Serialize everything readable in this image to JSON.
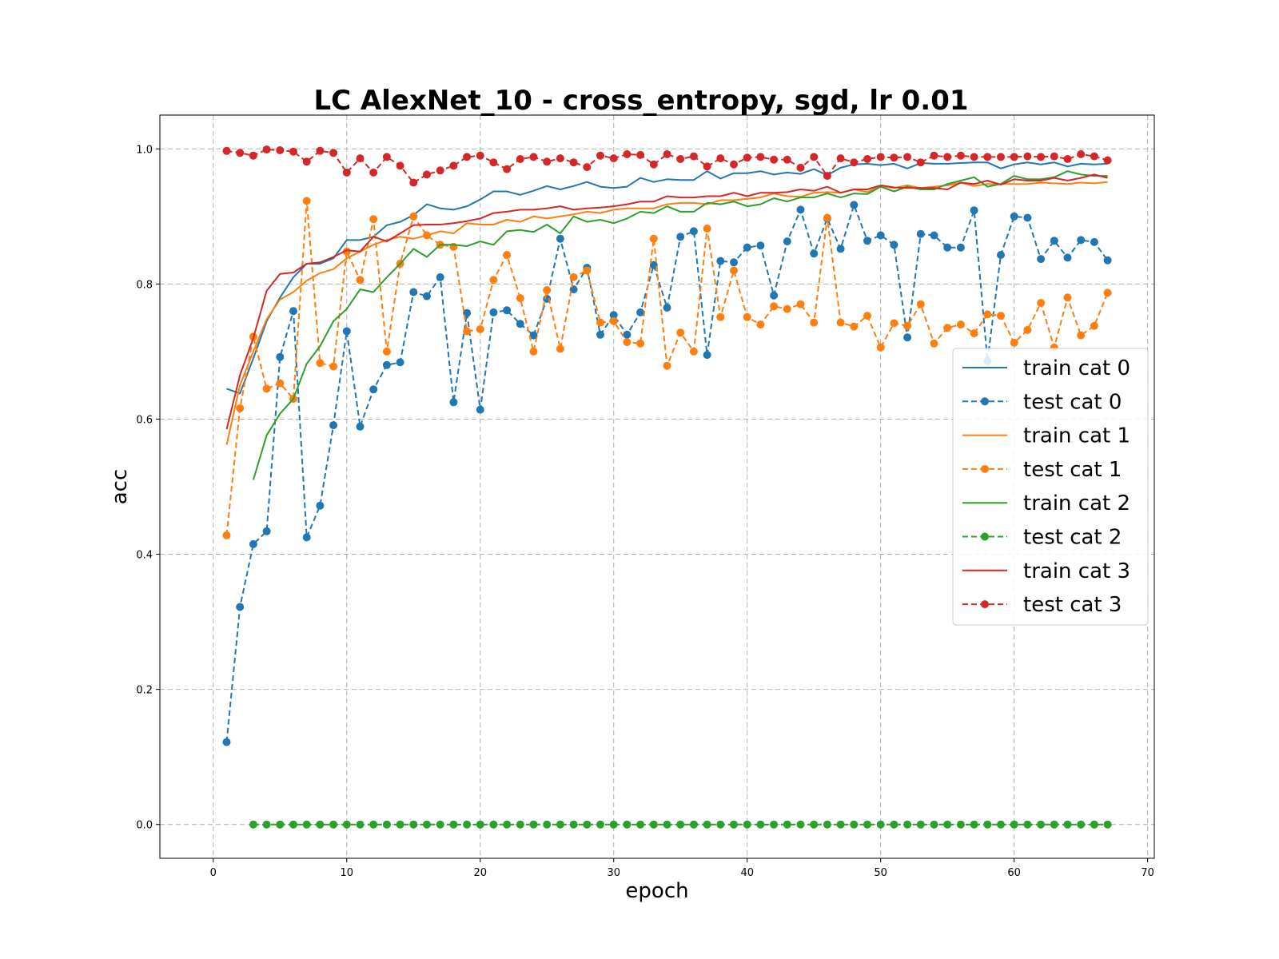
{
  "chart_data": {
    "type": "line",
    "title": "LC AlexNet_10 - cross_entropy, sgd, lr 0.01",
    "xlabel": "epoch",
    "ylabel": "acc",
    "xlim": [
      -4,
      70.5
    ],
    "ylim": [
      -0.05,
      1.05
    ],
    "xticks": [
      0,
      10,
      20,
      30,
      40,
      50,
      60,
      70
    ],
    "yticks": [
      0.0,
      0.2,
      0.4,
      0.6,
      0.8,
      1.0
    ],
    "xtick_labels": [
      "0",
      "10",
      "20",
      "30",
      "40",
      "50",
      "60",
      "70"
    ],
    "ytick_labels": [
      "0.0",
      "0.2",
      "0.4",
      "0.6",
      "0.8",
      "1.0"
    ],
    "grid": true,
    "legend_position": "center-right",
    "series": [
      {
        "name": "train cat 0",
        "color": "#1f77b4",
        "style": "solid",
        "marker": false,
        "x": [
          1,
          2,
          3,
          4,
          5,
          6,
          7,
          8,
          9,
          10,
          11,
          12,
          13,
          14,
          15,
          16,
          17,
          18,
          19,
          20,
          21,
          22,
          23,
          24,
          25,
          26,
          27,
          28,
          29,
          30,
          31,
          32,
          33,
          34,
          35,
          36,
          37,
          38,
          39,
          40,
          41,
          42,
          43,
          44,
          45,
          46,
          47,
          48,
          49,
          50,
          51,
          52,
          53,
          54,
          55,
          56,
          57,
          58,
          59,
          60,
          61,
          62,
          63,
          64,
          65,
          66,
          67
        ],
        "y": [
          0.645,
          0.638,
          0.69,
          0.745,
          0.78,
          0.81,
          0.83,
          0.83,
          0.838,
          0.865,
          0.865,
          0.87,
          0.887,
          0.892,
          0.902,
          0.918,
          0.912,
          0.91,
          0.915,
          0.925,
          0.937,
          0.937,
          0.932,
          0.938,
          0.945,
          0.94,
          0.945,
          0.951,
          0.944,
          0.942,
          0.944,
          0.957,
          0.951,
          0.955,
          0.954,
          0.954,
          0.967,
          0.956,
          0.964,
          0.964,
          0.967,
          0.962,
          0.965,
          0.963,
          0.97,
          0.961,
          0.972,
          0.977,
          0.978,
          0.976,
          0.978,
          0.971,
          0.979,
          0.978,
          0.978,
          0.979,
          0.98,
          0.98,
          0.971,
          0.977,
          0.98,
          0.977,
          0.98,
          0.974,
          0.978,
          0.977,
          0.978
        ]
      },
      {
        "name": "test cat 0",
        "color": "#1f77b4",
        "style": "dashed",
        "marker": true,
        "x": [
          1,
          2,
          3,
          4,
          5,
          6,
          7,
          8,
          9,
          10,
          11,
          12,
          13,
          14,
          15,
          16,
          17,
          18,
          19,
          20,
          21,
          22,
          23,
          24,
          25,
          26,
          27,
          28,
          29,
          30,
          31,
          32,
          33,
          34,
          35,
          36,
          37,
          38,
          39,
          40,
          41,
          42,
          43,
          44,
          45,
          46,
          47,
          48,
          49,
          50,
          51,
          52,
          53,
          54,
          55,
          56,
          57,
          58,
          59,
          60,
          61,
          62,
          63,
          64,
          65,
          66,
          67
        ],
        "y": [
          0.122,
          0.322,
          0.415,
          0.434,
          0.692,
          0.76,
          0.425,
          0.472,
          0.591,
          0.73,
          0.589,
          0.644,
          0.68,
          0.684,
          0.788,
          0.782,
          0.81,
          0.625,
          0.757,
          0.614,
          0.758,
          0.761,
          0.741,
          0.724,
          0.778,
          0.867,
          0.792,
          0.824,
          0.725,
          0.754,
          0.725,
          0.758,
          0.828,
          0.765,
          0.87,
          0.878,
          0.695,
          0.834,
          0.832,
          0.854,
          0.857,
          0.783,
          0.863,
          0.91,
          0.845,
          0.897,
          0.852,
          0.917,
          0.864,
          0.872,
          0.858,
          0.721,
          0.874,
          0.872,
          0.854,
          0.854,
          0.909,
          0.686,
          0.843,
          0.9,
          0.898,
          0.837,
          0.864,
          0.839,
          0.865,
          0.862,
          0.835
        ]
      },
      {
        "name": "train cat 1",
        "color": "#ff7f0e",
        "style": "solid",
        "marker": false,
        "x": [
          1,
          2,
          3,
          4,
          5,
          6,
          7,
          8,
          9,
          10,
          11,
          12,
          13,
          14,
          15,
          16,
          17,
          18,
          19,
          20,
          21,
          22,
          23,
          24,
          25,
          26,
          27,
          28,
          29,
          30,
          31,
          32,
          33,
          34,
          35,
          36,
          37,
          38,
          39,
          40,
          41,
          42,
          43,
          44,
          45,
          46,
          47,
          48,
          49,
          50,
          51,
          52,
          53,
          54,
          55,
          56,
          57,
          58,
          59,
          60,
          61,
          62,
          63,
          64,
          65,
          66,
          67
        ],
        "y": [
          0.562,
          0.65,
          0.7,
          0.748,
          0.777,
          0.788,
          0.805,
          0.816,
          0.822,
          0.838,
          0.848,
          0.858,
          0.865,
          0.87,
          0.867,
          0.872,
          0.878,
          0.875,
          0.89,
          0.888,
          0.888,
          0.895,
          0.892,
          0.9,
          0.897,
          0.9,
          0.903,
          0.907,
          0.905,
          0.91,
          0.912,
          0.912,
          0.912,
          0.918,
          0.92,
          0.92,
          0.918,
          0.924,
          0.924,
          0.926,
          0.928,
          0.934,
          0.93,
          0.929,
          0.935,
          0.936,
          0.935,
          0.94,
          0.936,
          0.945,
          0.942,
          0.946,
          0.942,
          0.944,
          0.946,
          0.95,
          0.945,
          0.948,
          0.948,
          0.948,
          0.948,
          0.95,
          0.949,
          0.948,
          0.95,
          0.949,
          0.951
        ]
      },
      {
        "name": "test cat 1",
        "color": "#ff7f0e",
        "style": "dashed",
        "marker": true,
        "x": [
          1,
          2,
          3,
          4,
          5,
          6,
          7,
          8,
          9,
          10,
          11,
          12,
          13,
          14,
          15,
          16,
          17,
          18,
          19,
          20,
          21,
          22,
          23,
          24,
          25,
          26,
          27,
          28,
          29,
          30,
          31,
          32,
          33,
          34,
          35,
          36,
          37,
          38,
          39,
          40,
          41,
          42,
          43,
          44,
          45,
          46,
          47,
          48,
          49,
          50,
          51,
          52,
          53,
          54,
          55,
          56,
          57,
          58,
          59,
          60,
          61,
          62,
          63,
          64,
          65,
          66,
          67
        ],
        "y": [
          0.428,
          0.616,
          0.722,
          0.645,
          0.653,
          0.63,
          0.923,
          0.683,
          0.678,
          0.848,
          0.806,
          0.896,
          0.7,
          0.83,
          0.9,
          0.872,
          0.858,
          0.855,
          0.73,
          0.733,
          0.806,
          0.843,
          0.779,
          0.7,
          0.791,
          0.704,
          0.81,
          0.82,
          0.743,
          0.745,
          0.714,
          0.712,
          0.867,
          0.679,
          0.728,
          0.7,
          0.882,
          0.751,
          0.82,
          0.751,
          0.74,
          0.767,
          0.763,
          0.77,
          0.743,
          0.898,
          0.743,
          0.737,
          0.753,
          0.706,
          0.742,
          0.738,
          0.77,
          0.712,
          0.735,
          0.74,
          0.727,
          0.755,
          0.753,
          0.713,
          0.732,
          0.772,
          0.706,
          0.78,
          0.724,
          0.738,
          0.787
        ]
      },
      {
        "name": "train cat 2",
        "color": "#2ca02c",
        "style": "solid",
        "marker": false,
        "x": [
          3,
          4,
          5,
          6,
          7,
          8,
          9,
          10,
          11,
          12,
          13,
          14,
          15,
          16,
          17,
          18,
          19,
          20,
          21,
          22,
          23,
          24,
          25,
          26,
          27,
          28,
          29,
          30,
          31,
          32,
          33,
          34,
          35,
          36,
          37,
          38,
          39,
          40,
          41,
          42,
          43,
          44,
          45,
          46,
          47,
          48,
          49,
          50,
          51,
          52,
          53,
          54,
          55,
          56,
          57,
          58,
          59,
          60,
          61,
          62,
          63,
          64,
          65,
          66,
          67
        ],
        "y": [
          0.51,
          0.576,
          0.608,
          0.63,
          0.682,
          0.708,
          0.745,
          0.763,
          0.792,
          0.788,
          0.81,
          0.83,
          0.852,
          0.84,
          0.858,
          0.858,
          0.856,
          0.863,
          0.858,
          0.878,
          0.88,
          0.877,
          0.888,
          0.875,
          0.9,
          0.892,
          0.895,
          0.89,
          0.897,
          0.907,
          0.905,
          0.915,
          0.907,
          0.907,
          0.92,
          0.918,
          0.922,
          0.915,
          0.918,
          0.927,
          0.922,
          0.928,
          0.928,
          0.934,
          0.928,
          0.934,
          0.933,
          0.944,
          0.937,
          0.944,
          0.94,
          0.94,
          0.948,
          0.953,
          0.958,
          0.944,
          0.948,
          0.96,
          0.955,
          0.955,
          0.958,
          0.967,
          0.962,
          0.96,
          0.96
        ]
      },
      {
        "name": "test cat 2",
        "color": "#2ca02c",
        "style": "dashed",
        "marker": true,
        "x": [
          3,
          4,
          5,
          6,
          7,
          8,
          9,
          10,
          11,
          12,
          13,
          14,
          15,
          16,
          17,
          18,
          19,
          20,
          21,
          22,
          23,
          24,
          25,
          26,
          27,
          28,
          29,
          30,
          31,
          32,
          33,
          34,
          35,
          36,
          37,
          38,
          39,
          40,
          41,
          42,
          43,
          44,
          45,
          46,
          47,
          48,
          49,
          50,
          51,
          52,
          53,
          54,
          55,
          56,
          57,
          58,
          59,
          60,
          61,
          62,
          63,
          64,
          65,
          66,
          67
        ],
        "y": [
          0,
          0,
          0,
          0,
          0,
          0,
          0,
          0,
          0,
          0,
          0,
          0,
          0,
          0,
          0,
          0,
          0,
          0,
          0,
          0,
          0,
          0,
          0,
          0,
          0,
          0,
          0,
          0,
          0,
          0,
          0,
          0,
          0,
          0,
          0,
          0,
          0,
          0,
          0,
          0,
          0,
          0,
          0,
          0,
          0,
          0,
          0,
          0,
          0,
          0,
          0,
          0,
          0,
          0,
          0,
          0,
          0,
          0,
          0,
          0,
          0,
          0,
          0,
          0,
          0
        ]
      },
      {
        "name": "train cat 3",
        "color": "#d62728",
        "style": "solid",
        "marker": false,
        "x": [
          1,
          2,
          3,
          4,
          5,
          6,
          7,
          8,
          9,
          10,
          11,
          12,
          13,
          14,
          15,
          16,
          17,
          18,
          19,
          20,
          21,
          22,
          23,
          24,
          25,
          26,
          27,
          28,
          29,
          30,
          31,
          32,
          33,
          34,
          35,
          36,
          37,
          38,
          39,
          40,
          41,
          42,
          43,
          44,
          45,
          46,
          47,
          48,
          49,
          50,
          51,
          52,
          53,
          54,
          55,
          56,
          57,
          58,
          59,
          60,
          61,
          62,
          63,
          64,
          65,
          66,
          67
        ],
        "y": [
          0.585,
          0.665,
          0.72,
          0.79,
          0.815,
          0.817,
          0.83,
          0.832,
          0.84,
          0.85,
          0.848,
          0.87,
          0.863,
          0.875,
          0.887,
          0.888,
          0.888,
          0.89,
          0.893,
          0.897,
          0.905,
          0.907,
          0.91,
          0.91,
          0.912,
          0.915,
          0.91,
          0.912,
          0.913,
          0.915,
          0.918,
          0.922,
          0.922,
          0.93,
          0.928,
          0.928,
          0.93,
          0.93,
          0.935,
          0.93,
          0.935,
          0.935,
          0.936,
          0.94,
          0.938,
          0.944,
          0.935,
          0.94,
          0.94,
          0.946,
          0.943,
          0.942,
          0.942,
          0.942,
          0.94,
          0.95,
          0.948,
          0.953,
          0.947,
          0.955,
          0.953,
          0.953,
          0.957,
          0.953,
          0.957,
          0.962,
          0.957
        ]
      },
      {
        "name": "test cat 3",
        "color": "#d62728",
        "style": "dashed",
        "marker": true,
        "x": [
          1,
          2,
          3,
          4,
          5,
          6,
          7,
          8,
          9,
          10,
          11,
          12,
          13,
          14,
          15,
          16,
          17,
          18,
          19,
          20,
          21,
          22,
          23,
          24,
          25,
          26,
          27,
          28,
          29,
          30,
          31,
          32,
          33,
          34,
          35,
          36,
          37,
          38,
          39,
          40,
          41,
          42,
          43,
          44,
          45,
          46,
          47,
          48,
          49,
          50,
          51,
          52,
          53,
          54,
          55,
          56,
          57,
          58,
          59,
          60,
          61,
          62,
          63,
          64,
          65,
          66,
          67
        ],
        "y": [
          0.997,
          0.994,
          0.99,
          0.999,
          0.998,
          0.996,
          0.981,
          0.997,
          0.994,
          0.965,
          0.986,
          0.965,
          0.988,
          0.975,
          0.95,
          0.962,
          0.968,
          0.975,
          0.988,
          0.99,
          0.98,
          0.97,
          0.985,
          0.988,
          0.981,
          0.986,
          0.98,
          0.973,
          0.99,
          0.986,
          0.992,
          0.991,
          0.977,
          0.992,
          0.985,
          0.989,
          0.974,
          0.986,
          0.977,
          0.987,
          0.988,
          0.984,
          0.984,
          0.972,
          0.988,
          0.96,
          0.986,
          0.98,
          0.985,
          0.988,
          0.987,
          0.988,
          0.98,
          0.99,
          0.988,
          0.99,
          0.988,
          0.988,
          0.988,
          0.988,
          0.989,
          0.988,
          0.989,
          0.985,
          0.992,
          0.989,
          0.983
        ]
      }
    ]
  }
}
